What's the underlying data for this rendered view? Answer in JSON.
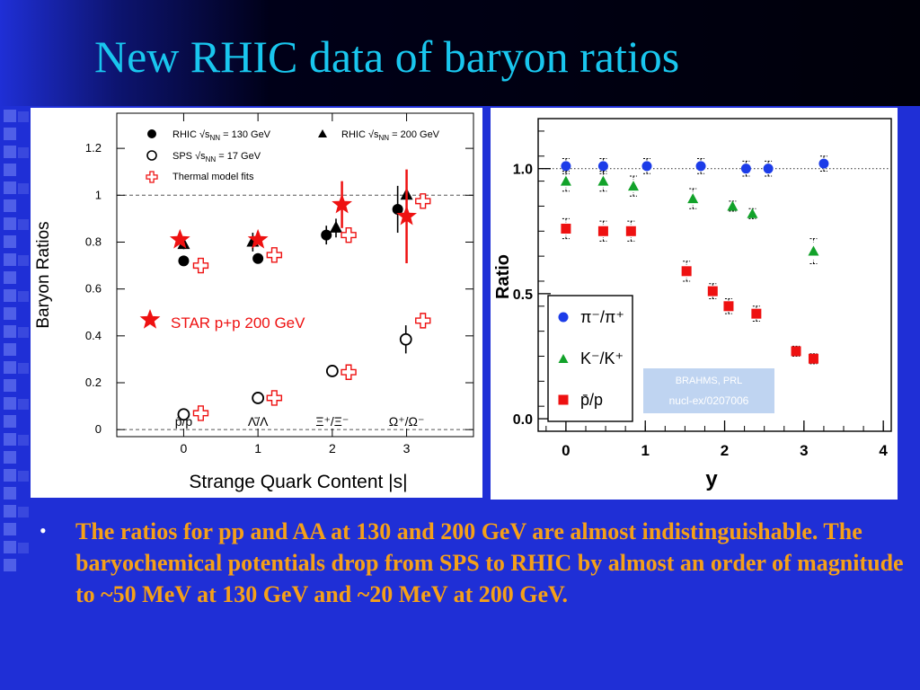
{
  "slide": {
    "title": "New RHIC data of baryon ratios",
    "bullet": "The ratios for pp and AA at 130 and 200 GeV are almost indistinguishable. The baryochemical potentials drop from SPS to RHIC by almost an order of magnitude to ~50 MeV at 130 GeV and ~20 MeV at 200 GeV.",
    "colors": {
      "title": "#19c6ee",
      "background": "#1f2fd6",
      "bullet_text": "#f5a018"
    }
  },
  "chart_data": [
    {
      "type": "scatter",
      "xlabel": "Strange Quark Content |s|",
      "ylabel": "Baryon Ratios",
      "xlim": [
        -0.9,
        3.9
      ],
      "ylim": [
        -0.03,
        1.35
      ],
      "x_ticks": [
        0,
        1,
        2,
        3
      ],
      "y_ticks": [
        0,
        0.2,
        0.4,
        0.6,
        0.8,
        1,
        1.2
      ],
      "y_tick_labels": [
        "0",
        "0.2",
        "0.4",
        "0.6",
        "0.8",
        "1",
        "1.2"
      ],
      "category_labels": [
        "p̄/p",
        "Λ̄/Λ",
        "Ξ⁺/Ξ⁻",
        "Ω⁺/Ω⁻"
      ],
      "reference_lines": [
        0,
        1
      ],
      "legend": [
        {
          "marker": "filled-circle",
          "label": "RHIC √sNN = 130 GeV"
        },
        {
          "marker": "filled-triangle",
          "label": "RHIC √sNN = 200 GeV"
        },
        {
          "marker": "open-circle",
          "label": "SPS √sNN = 17 GeV"
        },
        {
          "marker": "open-cross",
          "label": "Thermal model fits"
        }
      ],
      "annotation": {
        "marker": "star",
        "label": "STAR p+p 200 GeV",
        "color": "#ee1111"
      },
      "series": [
        {
          "name": "RHIC √sNN = 130 GeV",
          "marker": "filled-circle",
          "color": "#000000",
          "points": [
            {
              "x": 0.0,
              "y": 0.72,
              "err": 0.0
            },
            {
              "x": 1.0,
              "y": 0.73,
              "err": 0.02
            },
            {
              "x": 1.92,
              "y": 0.83,
              "err": 0.04
            },
            {
              "x": 2.88,
              "y": 0.94,
              "err": 0.1
            }
          ]
        },
        {
          "name": "RHIC √sNN = 200 GeV",
          "marker": "filled-triangle",
          "color": "#000000",
          "points": [
            {
              "x": 0.0,
              "y": 0.79,
              "err": 0.02
            },
            {
              "x": 0.93,
              "y": 0.8,
              "err": 0.04
            },
            {
              "x": 2.05,
              "y": 0.86,
              "err": 0.04
            },
            {
              "x": 3.0,
              "y": 1.0,
              "err": 0.08
            }
          ]
        },
        {
          "name": "SPS √sNN = 17 GeV",
          "marker": "open-circle",
          "color": "#000000",
          "points": [
            {
              "x": 0.0,
              "y": 0.065,
              "err": 0.0
            },
            {
              "x": 1.0,
              "y": 0.135,
              "err": 0.0
            },
            {
              "x": 2.0,
              "y": 0.25,
              "err": 0.0
            },
            {
              "x": 2.99,
              "y": 0.385,
              "err": 0.06
            }
          ]
        },
        {
          "name": "Thermal model fits",
          "marker": "open-cross",
          "color": "#ee1111",
          "points": [
            {
              "x": 0.23,
              "y": 0.07,
              "err": 0.0
            },
            {
              "x": 0.23,
              "y": 0.7,
              "err": 0.0
            },
            {
              "x": 1.22,
              "y": 0.135,
              "err": 0.0
            },
            {
              "x": 1.22,
              "y": 0.745,
              "err": 0.0
            },
            {
              "x": 2.22,
              "y": 0.245,
              "err": 0.0
            },
            {
              "x": 2.22,
              "y": 0.83,
              "err": 0.0
            },
            {
              "x": 3.22,
              "y": 0.465,
              "err": 0.0
            },
            {
              "x": 3.22,
              "y": 0.975,
              "err": 0.0
            }
          ]
        },
        {
          "name": "STAR p+p 200 GeV",
          "marker": "star",
          "color": "#ee1111",
          "points": [
            {
              "x": -0.05,
              "y": 0.81,
              "err": 0.0
            },
            {
              "x": 1.0,
              "y": 0.81,
              "err": 0.0
            },
            {
              "x": 2.13,
              "y": 0.96,
              "err": 0.1
            },
            {
              "x": 3.0,
              "y": 0.91,
              "err": 0.2
            }
          ]
        }
      ]
    },
    {
      "type": "scatter",
      "xlabel": "y",
      "ylabel": "Ratio",
      "xlim": [
        -0.35,
        4.1
      ],
      "ylim": [
        -0.05,
        1.2
      ],
      "x_ticks": [
        0,
        1,
        2,
        3,
        4
      ],
      "y_ticks": [
        0.0,
        0.5,
        1.0
      ],
      "y_tick_labels": [
        "0.0",
        "0.5",
        "1.0"
      ],
      "reference_lines": [
        1
      ],
      "legend": [
        {
          "marker": "circle",
          "label": "π⁻/π⁺"
        },
        {
          "marker": "triangle",
          "label": "K⁻/K⁺"
        },
        {
          "marker": "square",
          "label": "p̄/p"
        }
      ],
      "annotation_box": {
        "line1": "BRAHMS, PRL",
        "line2": "nucl-ex/0207006"
      },
      "series": [
        {
          "name": "π⁻/π⁺",
          "marker": "circle",
          "color": "#1c3ce8",
          "points": [
            {
              "x": 0.0,
              "y": 1.01,
              "err": 0.03
            },
            {
              "x": 0.47,
              "y": 1.01,
              "err": 0.03
            },
            {
              "x": 1.02,
              "y": 1.01,
              "err": 0.03
            },
            {
              "x": 1.7,
              "y": 1.01,
              "err": 0.03
            },
            {
              "x": 2.27,
              "y": 1.0,
              "err": 0.03
            },
            {
              "x": 2.55,
              "y": 1.0,
              "err": 0.03
            },
            {
              "x": 3.25,
              "y": 1.02,
              "err": 0.03
            }
          ]
        },
        {
          "name": "K⁻/K⁺",
          "marker": "triangle",
          "color": "#12a22a",
          "points": [
            {
              "x": 0.0,
              "y": 0.95,
              "err": 0.04
            },
            {
              "x": 0.47,
              "y": 0.95,
              "err": 0.04
            },
            {
              "x": 0.85,
              "y": 0.93,
              "err": 0.04
            },
            {
              "x": 1.6,
              "y": 0.88,
              "err": 0.04
            },
            {
              "x": 2.1,
              "y": 0.85,
              "err": 0.02
            },
            {
              "x": 2.35,
              "y": 0.82,
              "err": 0.02
            },
            {
              "x": 3.12,
              "y": 0.67,
              "err": 0.05
            }
          ]
        },
        {
          "name": "p̄/p",
          "marker": "square",
          "color": "#ee1111",
          "points": [
            {
              "x": 0.0,
              "y": 0.76,
              "err": 0.04
            },
            {
              "x": 0.47,
              "y": 0.75,
              "err": 0.04
            },
            {
              "x": 0.82,
              "y": 0.75,
              "err": 0.04
            },
            {
              "x": 1.52,
              "y": 0.59,
              "err": 0.04
            },
            {
              "x": 1.85,
              "y": 0.51,
              "err": 0.03
            },
            {
              "x": 2.05,
              "y": 0.45,
              "err": 0.03
            },
            {
              "x": 2.4,
              "y": 0.42,
              "err": 0.03
            },
            {
              "x": 2.9,
              "y": 0.27,
              "err": 0.02
            },
            {
              "x": 3.12,
              "y": 0.24,
              "err": 0.02
            }
          ]
        }
      ]
    }
  ]
}
